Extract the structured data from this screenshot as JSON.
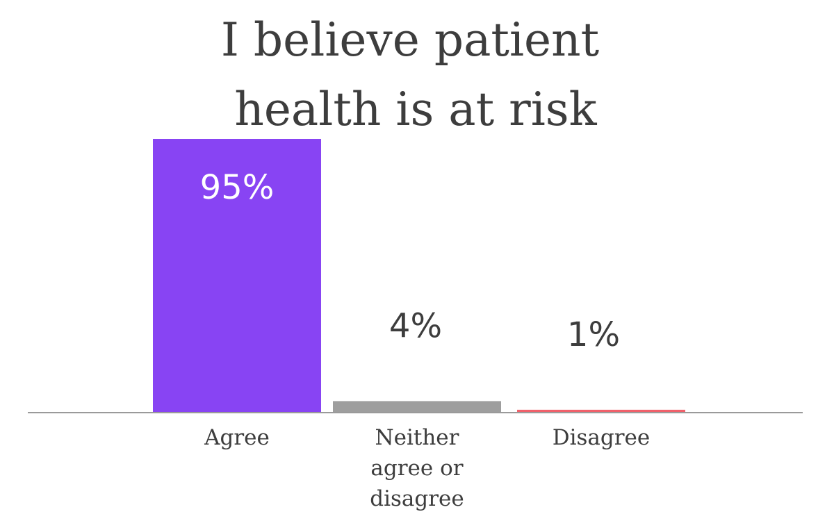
{
  "chart_data": {
    "type": "bar",
    "title_lines": [
      "I believe patient",
      "health is at risk"
    ],
    "categories": [
      [
        "Agree"
      ],
      [
        "Neither",
        "agree or",
        "disagree"
      ],
      [
        "Disagree"
      ]
    ],
    "values": [
      95,
      4,
      1
    ],
    "value_labels": [
      "95%",
      "4%",
      "1%"
    ],
    "ylim": [
      0,
      100
    ],
    "grid": false,
    "legend": "none"
  },
  "colors": {
    "bars": [
      "#8844f3",
      "#9e9e9e",
      "#f0616b"
    ],
    "value_label_inside": "#ffffff",
    "value_label_outside": "#3d3d3d",
    "baseline": "#9a9a9a"
  }
}
